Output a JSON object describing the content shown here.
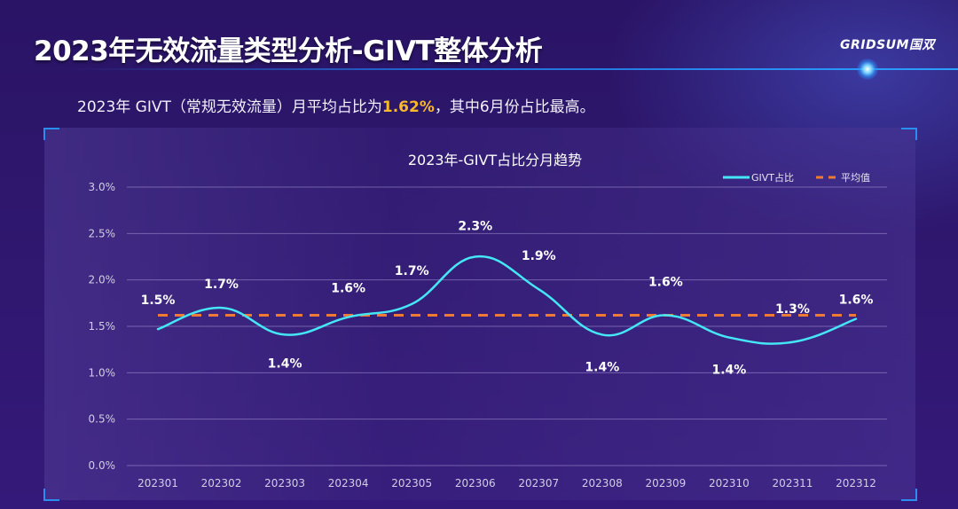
{
  "header": {
    "title": "2023年无效流量类型分析-GIVT整体分析",
    "logo_text": "GRIDSUM国双"
  },
  "summary": {
    "prefix": "2023年 GIVT（常规无效流量）月平均占比为",
    "highlight": "1.62%",
    "suffix": "，其中6月份占比最高。"
  },
  "colors": {
    "series_line": "#45e6f5",
    "average_line": "#ef7a33",
    "highlight": "#f7b829",
    "accent": "#2a8df0"
  },
  "chart_data": {
    "type": "line",
    "title": "2023年-GIVT占比分月趋势",
    "xlabel": "",
    "ylabel": "",
    "categories": [
      "202301",
      "202302",
      "202303",
      "202304",
      "202305",
      "202306",
      "202307",
      "202308",
      "202309",
      "202310",
      "202311",
      "202312"
    ],
    "series": [
      {
        "name": "GIVT占比",
        "values": [
          1.47,
          1.7,
          1.41,
          1.6,
          1.74,
          2.25,
          1.9,
          1.41,
          1.62,
          1.38,
          1.33,
          1.58
        ],
        "labels": [
          "1.5%",
          "1.7%",
          "1.4%",
          "1.6%",
          "1.7%",
          "2.3%",
          "1.9%",
          "1.4%",
          "1.6%",
          "1.4%",
          "1.3%",
          "1.6%"
        ],
        "label_positions": [
          "above",
          "above",
          "below",
          "above",
          "above",
          "above",
          "above",
          "below",
          "above",
          "below",
          "above",
          "above"
        ]
      },
      {
        "name": "平均值",
        "values": [
          1.62,
          1.62,
          1.62,
          1.62,
          1.62,
          1.62,
          1.62,
          1.62,
          1.62,
          1.62,
          1.62,
          1.62
        ],
        "style": "dashed"
      }
    ],
    "yticks": [
      "0.0%",
      "0.5%",
      "1.0%",
      "1.5%",
      "2.0%",
      "2.5%",
      "3.0%"
    ],
    "ytick_values": [
      0,
      0.5,
      1.0,
      1.5,
      2.0,
      2.5,
      3.0
    ],
    "ylim": [
      0,
      3.0
    ],
    "grid": true,
    "legend_position": "top-right",
    "smooth": true
  }
}
